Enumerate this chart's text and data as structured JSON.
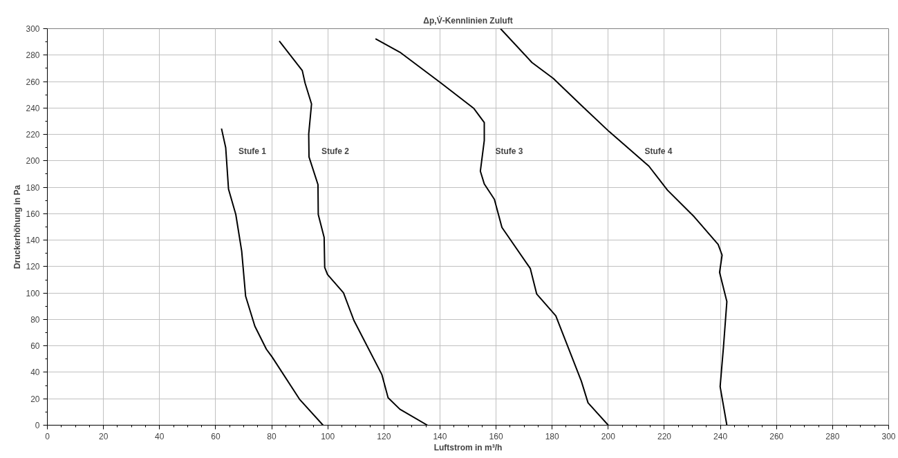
{
  "chart_data": {
    "type": "line",
    "title": "Δp,V̇-Kennlinien Zuluft",
    "xlabel": "Luftstrom in m³/h",
    "ylabel": "Druckerhöhung in Pa",
    "xlim": [
      0,
      300
    ],
    "ylim": [
      0,
      300
    ],
    "xticks": [
      0,
      20,
      40,
      60,
      80,
      100,
      120,
      140,
      160,
      180,
      200,
      220,
      240,
      260,
      280,
      300
    ],
    "yticks": [
      0,
      20,
      40,
      60,
      80,
      100,
      120,
      140,
      160,
      180,
      200,
      220,
      240,
      260,
      280,
      300
    ],
    "grid": true,
    "legend": false,
    "marker": "none",
    "line_style": "solid",
    "series": [
      {
        "name": "Stufe 1",
        "color": "#000000",
        "x": [
          98.3,
          89.9,
          80.2,
          78.1,
          74.0,
          70.7,
          69.3,
          67.2,
          64.6,
          63.6,
          62.1
        ],
        "values": [
          0,
          19.7,
          51.4,
          57.5,
          74.9,
          97.6,
          131.6,
          159.4,
          178.6,
          210,
          224.4
        ]
      },
      {
        "name": "Stufe 2",
        "color": "#000000",
        "x": [
          135.5,
          125.7,
          121.5,
          119.3,
          109.3,
          105.6,
          99.9,
          98.9,
          98.7,
          96.6,
          96.5,
          93.3,
          93.2,
          94.2,
          91.9,
          90.9,
          82.7
        ],
        "values": [
          0,
          12.1,
          20.8,
          38.2,
          79.3,
          100.2,
          114,
          119.3,
          142,
          159.4,
          182,
          203,
          220.4,
          243,
          258.8,
          268.3,
          290.6
        ]
      },
      {
        "name": "Stufe 3",
        "color": "#000000",
        "x": [
          200,
          192.8,
          190.4,
          181.3,
          174.5,
          172.2,
          162.1,
          159.4,
          155.8,
          154.4,
          155.8,
          155.8,
          152.1,
          140.3,
          125.7,
          117
        ],
        "values": [
          0,
          16.9,
          33.4,
          82.8,
          99.2,
          118.6,
          149.6,
          170.9,
          182.5,
          192.2,
          215.4,
          229,
          239.6,
          259,
          282.2,
          292.4
        ]
      },
      {
        "name": "Stufe 4",
        "color": "#000000",
        "x": [
          242.3,
          239.9,
          241.1,
          242.3,
          239.7,
          240.6,
          239.2,
          230.6,
          221.1,
          214.5,
          200.3,
          190.8,
          180.4,
          172.8,
          161.6
        ],
        "values": [
          0,
          29.2,
          59.3,
          93.5,
          115.6,
          128.7,
          136.7,
          157.8,
          177.9,
          196,
          222.2,
          241.2,
          262.4,
          274.4,
          300
        ]
      }
    ]
  }
}
